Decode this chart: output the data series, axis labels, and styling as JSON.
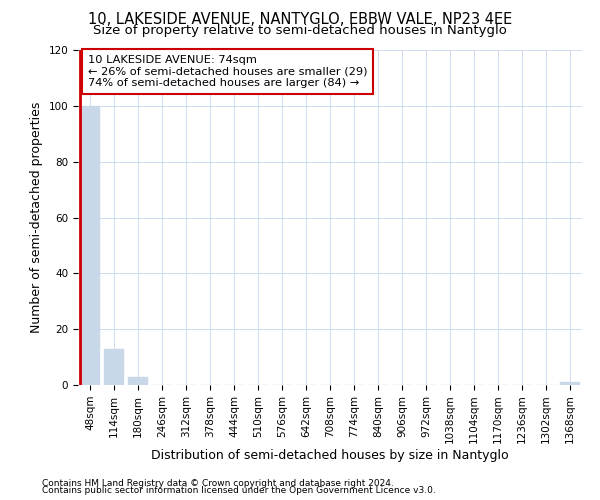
{
  "title": "10, LAKESIDE AVENUE, NANTYGLO, EBBW VALE, NP23 4EE",
  "subtitle": "Size of property relative to semi-detached houses in Nantyglo",
  "xlabel": "Distribution of semi-detached houses by size in Nantyglo",
  "ylabel": "Number of semi-detached properties",
  "footnote1": "Contains HM Land Registry data © Crown copyright and database right 2024.",
  "footnote2": "Contains public sector information licensed under the Open Government Licence v3.0.",
  "annotation_title": "10 LAKESIDE AVENUE: 74sqm",
  "annotation_line2": "← 26% of semi-detached houses are smaller (29)",
  "annotation_line3": "74% of semi-detached houses are larger (84) →",
  "categories": [
    "48sqm",
    "114sqm",
    "180sqm",
    "246sqm",
    "312sqm",
    "378sqm",
    "444sqm",
    "510sqm",
    "576sqm",
    "642sqm",
    "708sqm",
    "774sqm",
    "840sqm",
    "906sqm",
    "972sqm",
    "1038sqm",
    "1104sqm",
    "1170sqm",
    "1236sqm",
    "1302sqm",
    "1368sqm"
  ],
  "values": [
    100,
    13,
    3,
    0,
    0,
    0,
    0,
    0,
    0,
    0,
    0,
    0,
    0,
    0,
    0,
    0,
    0,
    0,
    0,
    0,
    1
  ],
  "bar_color": "#c8d8e8",
  "prop_line_color": "#cc0000",
  "ylim": [
    0,
    120
  ],
  "yticks": [
    0,
    20,
    40,
    60,
    80,
    100,
    120
  ],
  "bg_color": "#ffffff",
  "grid_color": "#ccddee",
  "title_fontsize": 10.5,
  "subtitle_fontsize": 9.5,
  "axis_fontsize": 9,
  "tick_fontsize": 7.5,
  "footnote_fontsize": 6.5,
  "bar_width": 0.85
}
